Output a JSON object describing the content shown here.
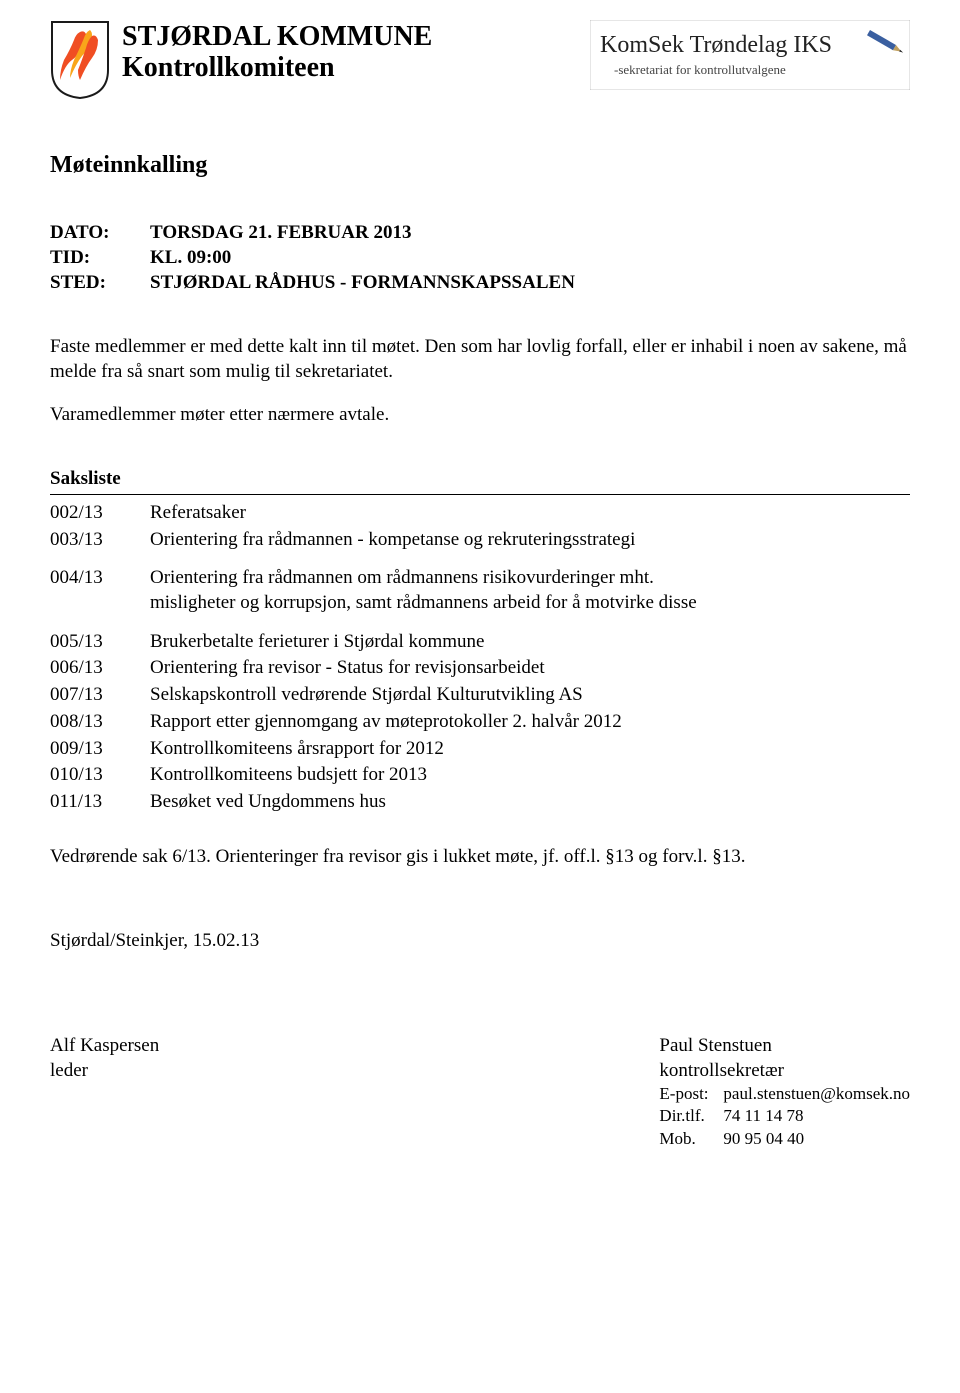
{
  "header": {
    "org_name": "STJØRDAL KOMMUNE",
    "org_sub": "Kontrollkomiteen",
    "logo_main": "KomSek Trøndelag IKS",
    "logo_tag": "-sekretariat for kontrollutvalgene"
  },
  "doc_title": "Møteinnkalling",
  "meta": {
    "dato_label": "DATO:",
    "dato_value": "TORSDAG 21. FEBRUAR 2013",
    "tid_label": "TID:",
    "tid_value": "KL. 09:00",
    "sted_label": "STED:",
    "sted_value": "STJØRDAL RÅDHUS - FORMANNSKAPSSALEN"
  },
  "intro": {
    "p1": "Faste medlemmer er med dette kalt inn til møtet. Den som har lovlig forfall, eller er inhabil i noen av sakene, må melde fra så snart som mulig til sekretariatet.",
    "p2": "Varamedlemmer møter etter nærmere avtale."
  },
  "saksliste_title": "Saksliste",
  "saker": [
    {
      "num": "002/13",
      "desc": "Referatsaker",
      "gap": false
    },
    {
      "num": "003/13",
      "desc": "Orientering fra rådmannen - kompetanse og rekruteringsstrategi",
      "gap": true
    },
    {
      "num": "004/13",
      "desc": "Orientering fra rådmannen om rådmannens risikovurderinger mht. misligheter og korrupsjon, samt rådmannens arbeid for å motvirke disse",
      "gap": true
    },
    {
      "num": "005/13",
      "desc": "Brukerbetalte ferieturer i Stjørdal kommune",
      "gap": false
    },
    {
      "num": "006/13",
      "desc": "Orientering fra revisor - Status for revisjonsarbeidet",
      "gap": false
    },
    {
      "num": "007/13",
      "desc": "Selskapskontroll vedrørende Stjørdal Kulturutvikling AS",
      "gap": false
    },
    {
      "num": "008/13",
      "desc": "Rapport etter gjennomgang av møteprotokoller 2. halvår 2012",
      "gap": false
    },
    {
      "num": "009/13",
      "desc": "Kontrollkomiteens årsrapport for 2012",
      "gap": false
    },
    {
      "num": "010/13",
      "desc": "Kontrollkomiteens budsjett for 2013",
      "gap": false
    },
    {
      "num": "011/13",
      "desc": "Besøket ved Ungdommens hus",
      "gap": false
    }
  ],
  "footnote": "Vedrørende sak 6/13. Orienteringer fra revisor gis i lukket møte, jf. off.l. §13 og forv.l. §13.",
  "date_line": "Stjørdal/Steinkjer, 15.02.13",
  "sign": {
    "left_name": "Alf Kaspersen",
    "left_title": "leder",
    "right_name": "Paul Stenstuen",
    "right_title": "kontrollsekretær",
    "epost_label": "E-post:",
    "epost_value": "paul.stenstuen@komsek.no",
    "dirtlf_label": "Dir.tlf.",
    "dirtlf_value": "74 11 14 78",
    "mob_label": "Mob.",
    "mob_value": "90 95 04 40"
  },
  "colors": {
    "crest_red": "#f04e23",
    "crest_yellow": "#f9a51a",
    "crest_outline": "#1a1a1a"
  }
}
